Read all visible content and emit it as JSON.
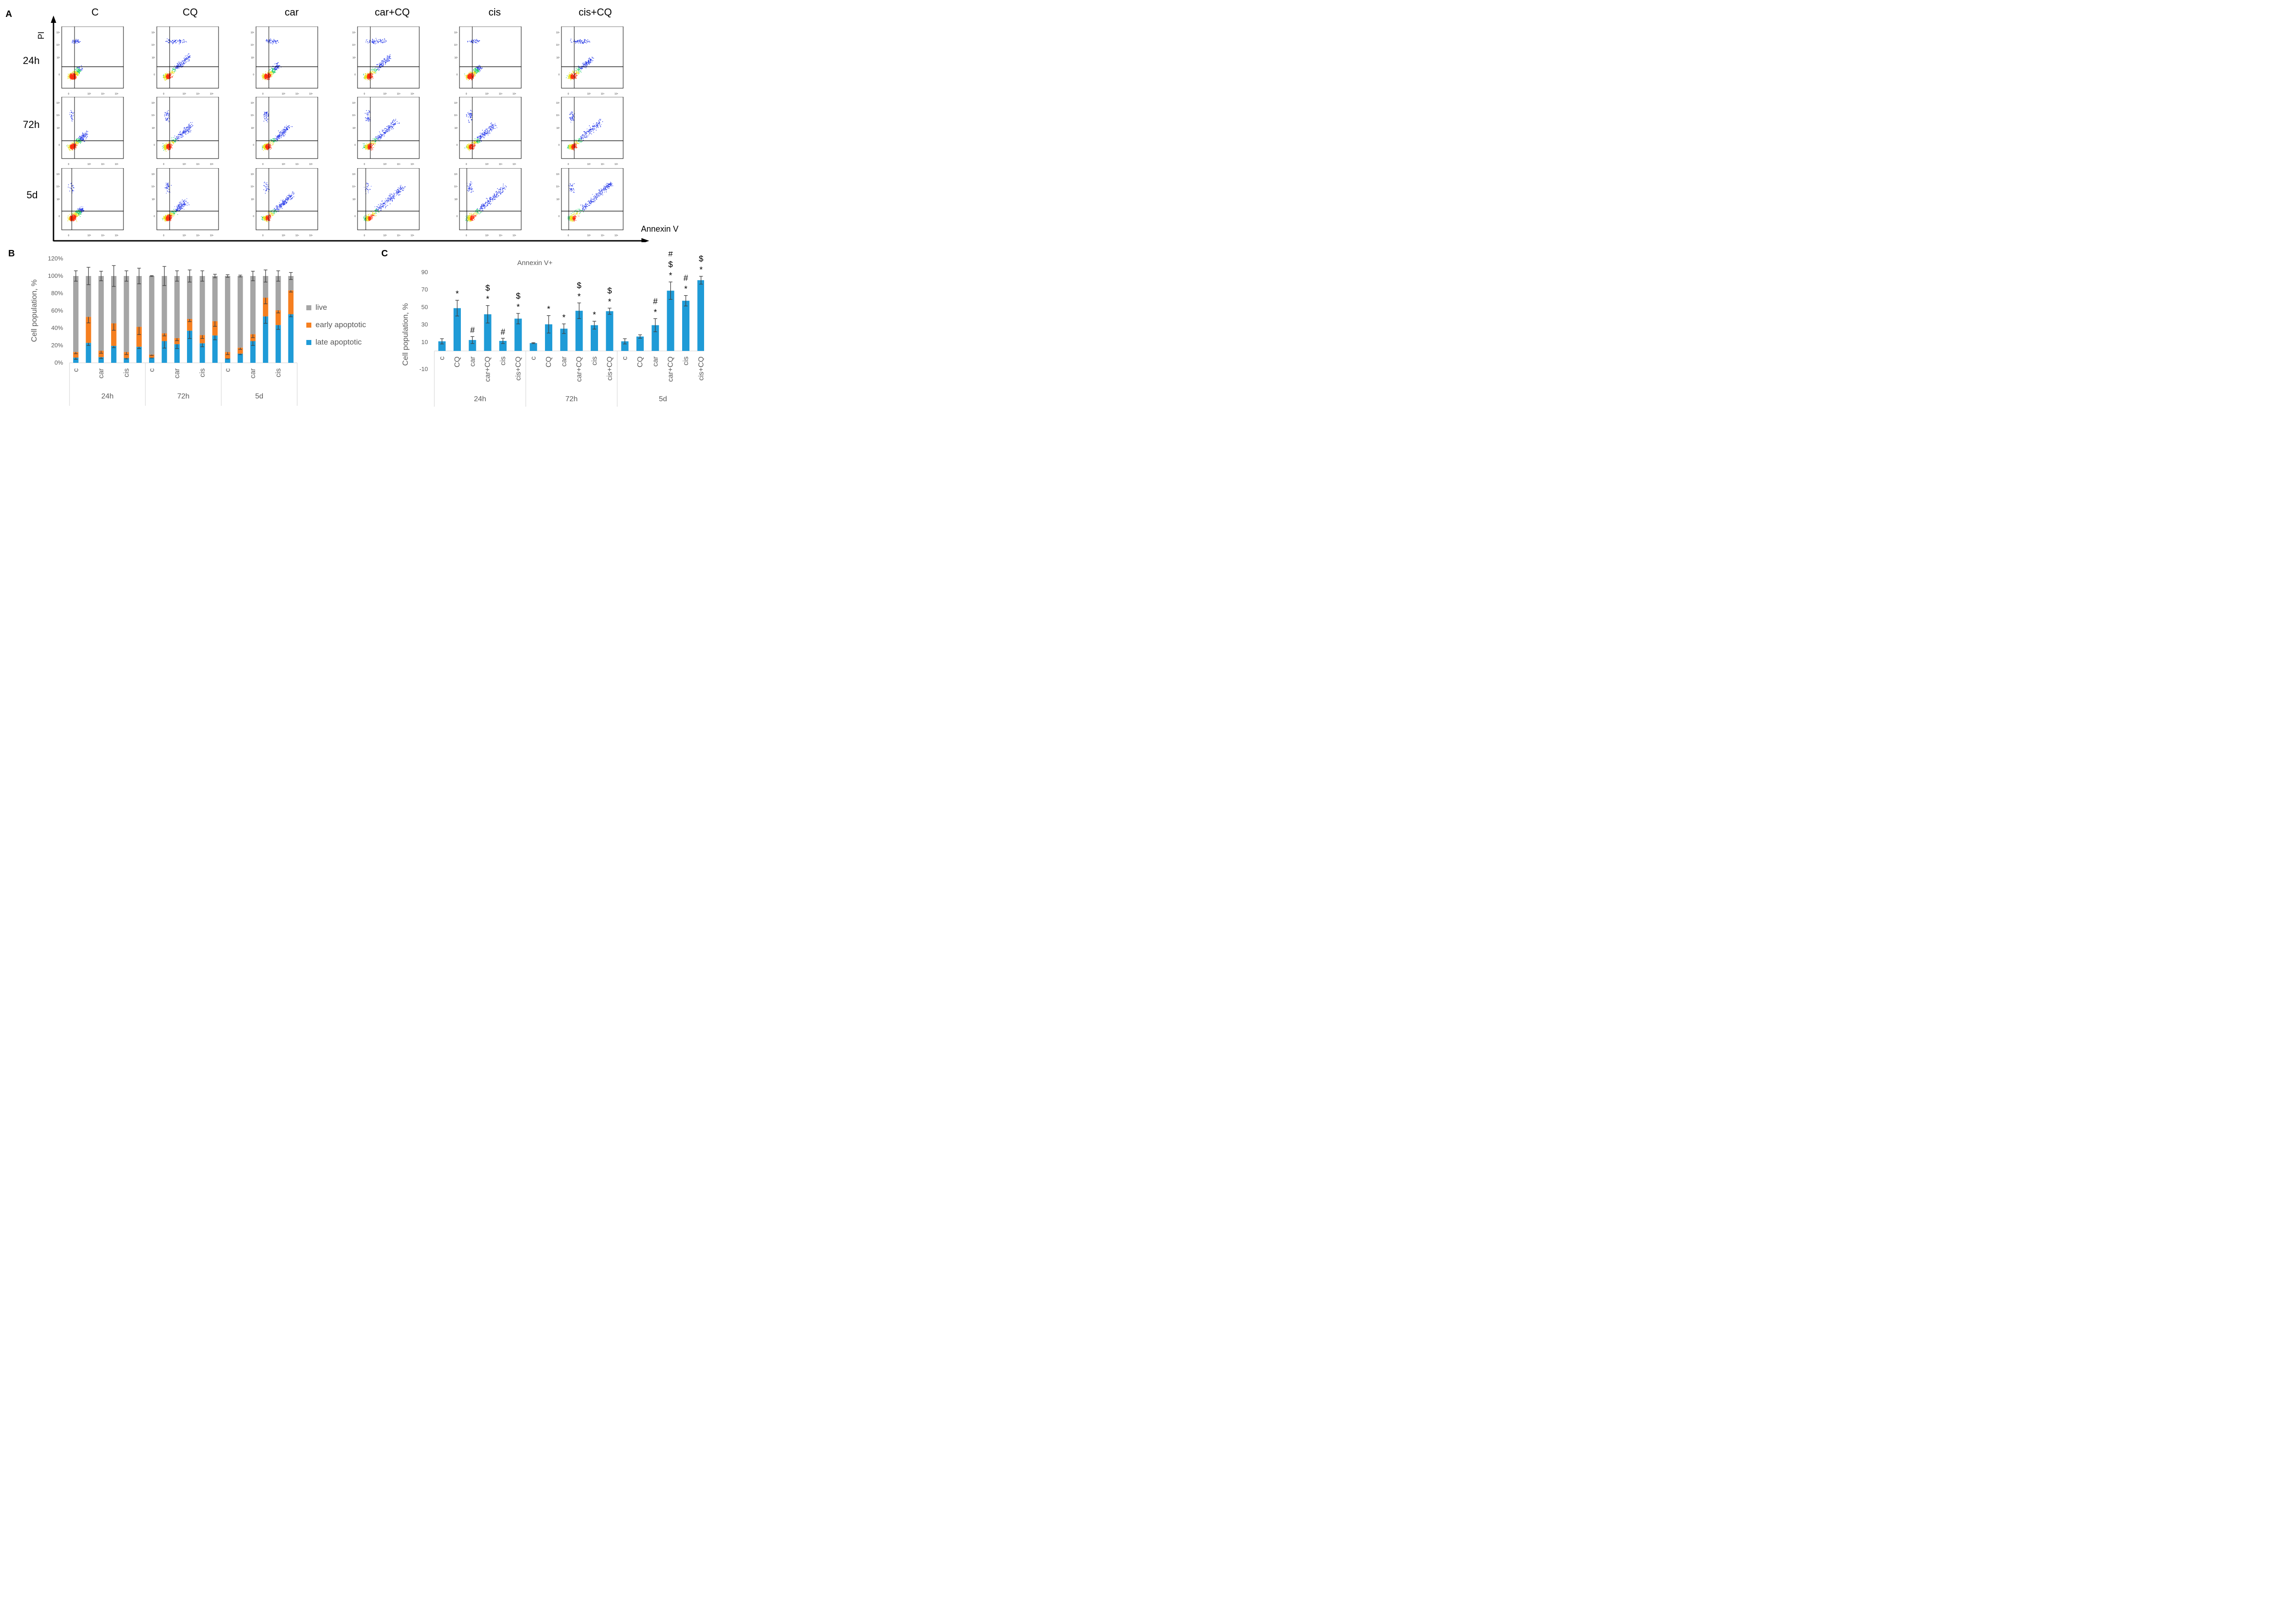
{
  "panel_a": {
    "letter": "A",
    "y_axis_label": "PI",
    "x_axis_label": "Annexin V",
    "columns": [
      "C",
      "CQ",
      "car",
      "car+CQ",
      "cis",
      "cis+CQ"
    ],
    "rows": [
      "24h",
      "72h",
      "5d"
    ],
    "tick_labels_x": [
      "0",
      "10³",
      "10⁴",
      "10⁵"
    ],
    "tick_labels_y": [
      "0",
      "10³",
      "10⁴",
      "10⁵"
    ]
  },
  "chart_data": [
    {
      "id": "B",
      "letter": "B",
      "type": "bar",
      "stacked": true,
      "title": "",
      "xlabel": "",
      "ylabel": "Cell population, %",
      "ylim": [
        0,
        120
      ],
      "yticks": [
        "0%",
        "20%",
        "40%",
        "60%",
        "80%",
        "100%",
        "120%"
      ],
      "groups": [
        "24h",
        "72h",
        "5d"
      ],
      "categories": [
        "c",
        "CQ",
        "car",
        "car+CQ",
        "cis",
        "cis+CQ"
      ],
      "visible_category_labels": [
        "c",
        "",
        "car",
        "",
        "cis",
        ""
      ],
      "legend_position": "right",
      "series": [
        {
          "name": "late apoptotic",
          "color": "#1f9bd7",
          "values": [
            6,
            23,
            6.5,
            19.5,
            5.5,
            18.5,
            6,
            25,
            21.5,
            37,
            22.5,
            31.5,
            5,
            10.5,
            25,
            53.5,
            43.5,
            56
          ],
          "errors": [
            2,
            3,
            1.5,
            2,
            1,
            2,
            0.5,
            8,
            5,
            9,
            4,
            5,
            0.5,
            1,
            5,
            8,
            5,
            3
          ]
        },
        {
          "name": "early apoptotic",
          "color": "#f57f20",
          "values": [
            6.5,
            30,
            7.5,
            26,
            7,
            23,
            3.5,
            9,
            7,
            13.5,
            9.5,
            16.5,
            7.5,
            7,
            8,
            21.5,
            17,
            27.5
          ],
          "errors": [
            2,
            7,
            3,
            8,
            3,
            9,
            1,
            3,
            3,
            3,
            4,
            6,
            3,
            2,
            4,
            7,
            3,
            2
          ]
        },
        {
          "name": "live",
          "color": "#a5a5a5",
          "values": [
            87.5,
            47,
            86,
            54.5,
            87.5,
            58.5,
            90.5,
            66,
            71.5,
            49.5,
            68,
            52,
            87.5,
            82.5,
            67,
            25,
            39.5,
            16.5
          ],
          "errors": [
            6,
            10,
            5.5,
            12,
            6,
            9,
            0.5,
            11,
            6,
            7,
            6,
            2,
            1.5,
            1,
            5.5,
            7,
            6,
            4
          ]
        }
      ]
    },
    {
      "id": "C",
      "letter": "C",
      "type": "bar",
      "title": "Annexin V+",
      "xlabel": "",
      "ylabel": "Cell population, %",
      "ylim": [
        -10,
        90
      ],
      "yticks": [
        "-10",
        "10",
        "30",
        "50",
        "70",
        "90"
      ],
      "groups": [
        "24h",
        "72h",
        "5d"
      ],
      "categories": [
        "c",
        "CQ",
        "car",
        "car+CQ",
        "cis",
        "cis+CQ"
      ],
      "color": "#1f9bd7",
      "series": [
        {
          "name": "Annexin V+",
          "values": [
            11,
            49,
            12.5,
            42,
            11.5,
            37,
            9,
            30.5,
            25.5,
            46,
            29.5,
            45.5,
            11,
            16.5,
            29.5,
            69,
            57.5,
            81
          ],
          "errors": [
            3,
            9,
            4,
            10,
            3,
            6,
            0.5,
            10,
            5.5,
            9,
            4.5,
            3.5,
            3,
            2,
            7.5,
            10,
            6,
            4.5
          ],
          "annotations": [
            "",
            "*",
            "#",
            "*\n$",
            "#",
            "*\n$",
            "",
            "*",
            "*",
            "*\n$",
            "*",
            "*\n$",
            "",
            "",
            "*\n#",
            "*\n$\n#",
            "*\n#",
            "*\n$\n#"
          ]
        }
      ]
    }
  ]
}
